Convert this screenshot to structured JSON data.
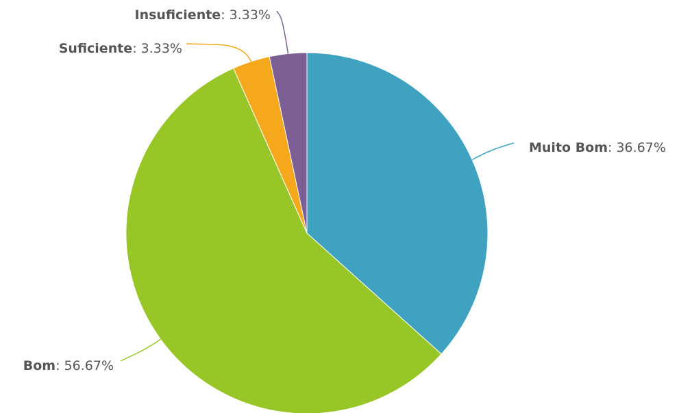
{
  "chart_data": {
    "type": "pie",
    "title": "",
    "value_suffix": "%",
    "slices": [
      {
        "name": "Muito Bom",
        "value": 36.67,
        "value_label": "36.67%",
        "color": "#3fa2c1"
      },
      {
        "name": "Bom",
        "value": 56.67,
        "value_label": "56.67%",
        "color": "#97c626"
      },
      {
        "name": "Suficiente",
        "value": 3.33,
        "value_label": "3.33%",
        "color": "#f5a81c"
      },
      {
        "name": "Insuficiente",
        "value": 3.33,
        "value_label": "3.33%",
        "color": "#7b5f95"
      }
    ]
  }
}
